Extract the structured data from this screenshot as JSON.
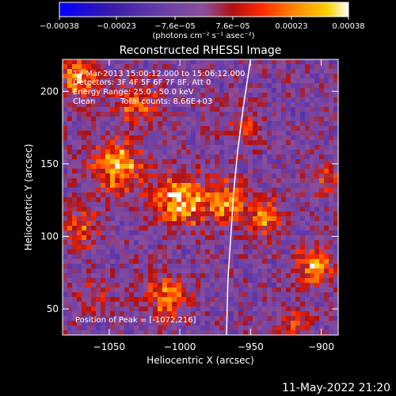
{
  "chart_data": {
    "type": "heatmap",
    "title": "Reconstructed RHESSI Image",
    "xlabel": "Heliocentric X (arcsec)",
    "ylabel": "Heliocentric Y (arcsec)",
    "xlim": [
      -1083,
      -888
    ],
    "ylim": [
      32,
      222
    ],
    "x_ticks": [
      -1050,
      -1000,
      -950,
      -900
    ],
    "x_tick_labels": [
      "−1050",
      "−1000",
      "−950",
      "−900"
    ],
    "y_ticks": [
      50,
      100,
      150,
      200
    ],
    "y_tick_labels": [
      "50",
      "100",
      "150",
      "200"
    ],
    "colorbar": {
      "min": -0.00038,
      "max": 0.00038,
      "ticks": [
        -0.00038,
        -0.00023,
        -7.6e-05,
        7.6e-05,
        0.00023,
        0.00038
      ],
      "tick_labels": [
        "−0.00038",
        "−0.00023",
        "−7.6e−05",
        "7.6e−05",
        "0.00023",
        "0.00038"
      ],
      "units_label": "(photons cm⁻² s⁻¹ asec⁻²)",
      "colors": [
        "#0000ff",
        "#3a1aa8",
        "#6a3fa8",
        "#8a4e9c",
        "#b01010",
        "#ff2a00",
        "#ff8c00",
        "#ffd200",
        "#ffffff"
      ]
    },
    "annotations": [
      "13-Mar-2013 15:00:12.000 to 15:06:12.000",
      "Detectors: 3F 4F 5F 6F 7F 8F, Att 0",
      "Energy Range: 25.0 - 50.0 keV",
      "Clean",
      "Total counts: 8.66E+03"
    ],
    "peak_label": "Position of Peak = [-1072,216]",
    "limb_curve": [
      [
        -950,
        222
      ],
      [
        -955,
        190
      ],
      [
        -959,
        160
      ],
      [
        -962,
        130
      ],
      [
        -964,
        100
      ],
      [
        -966,
        70
      ],
      [
        -967,
        32
      ]
    ],
    "sources": [
      {
        "x": -1044,
        "y": 148,
        "sigma": 12,
        "amp": 0.00036
      },
      {
        "x": -1000,
        "y": 124,
        "sigma": 12,
        "amp": 0.00038
      },
      {
        "x": -1030,
        "y": 192,
        "sigma": 10,
        "amp": 0.00026
      },
      {
        "x": -1072,
        "y": 210,
        "sigma": 9,
        "amp": 0.0003
      },
      {
        "x": -968,
        "y": 124,
        "sigma": 10,
        "amp": 0.00028
      },
      {
        "x": -940,
        "y": 114,
        "sigma": 9,
        "amp": 0.00026
      },
      {
        "x": -1010,
        "y": 58,
        "sigma": 11,
        "amp": 0.00024
      },
      {
        "x": -905,
        "y": 80,
        "sigma": 9,
        "amp": 0.0003
      },
      {
        "x": -1070,
        "y": 105,
        "sigma": 9,
        "amp": 0.00022
      },
      {
        "x": -895,
        "y": 140,
        "sigma": 8,
        "amp": 0.00018
      },
      {
        "x": -955,
        "y": 175,
        "sigma": 8,
        "amp": 0.00016
      },
      {
        "x": -920,
        "y": 40,
        "sigma": 8,
        "amp": 0.00016
      },
      {
        "x": -1060,
        "y": 60,
        "sigma": 8,
        "amp": 0.00014
      }
    ]
  },
  "footer": {
    "date": "11-May-2022 21:20"
  }
}
